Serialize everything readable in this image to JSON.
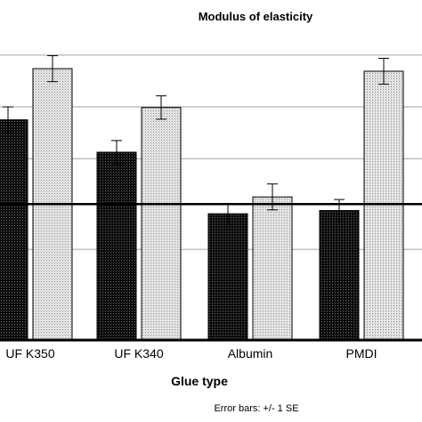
{
  "chart_data": {
    "type": "bar",
    "title": "Modulus of elasticity",
    "xlabel": "Glue type",
    "ylabel": "",
    "categories": [
      "UF K350",
      "UF K340",
      "Albumin",
      "PMDI"
    ],
    "series": [
      {
        "values": [
          6400,
          5900,
          4950,
          5000
        ],
        "errors": [
          200,
          180,
          160,
          170
        ],
        "color": "#1a1a1a",
        "pattern": "dark-dots"
      },
      {
        "values": [
          7190,
          6590,
          5210,
          7150
        ],
        "errors": [
          200,
          180,
          200,
          200
        ],
        "color": "#d4d4d4",
        "pattern": "light-dots"
      }
    ],
    "reference_line": 5100,
    "ylim": [
      3000,
      7700
    ],
    "gridlines": [
      4400,
      5800,
      6600,
      7400
    ],
    "grid": true,
    "legend": "none",
    "note": "Error bars: +/- 1 SE"
  }
}
